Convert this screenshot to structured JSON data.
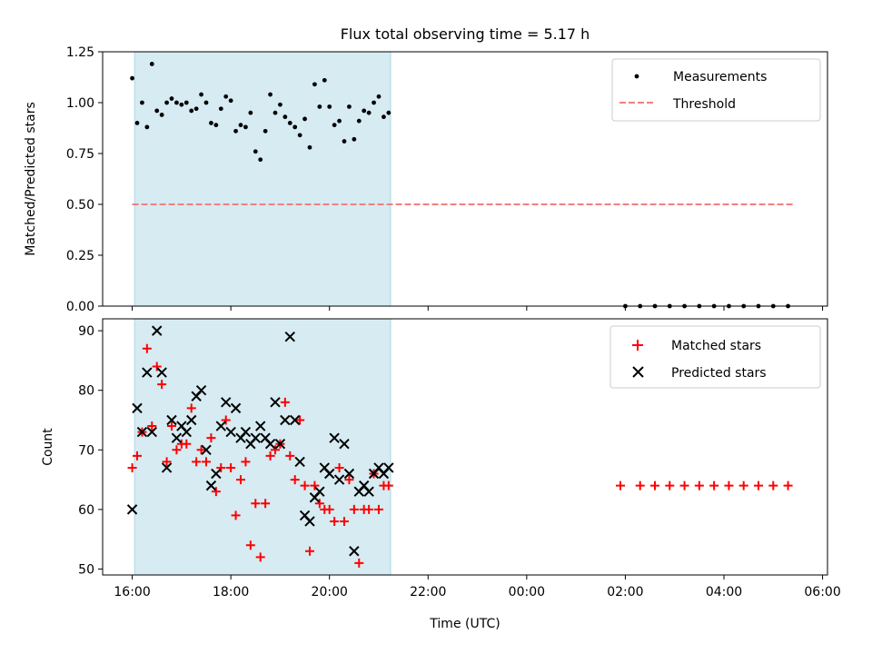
{
  "chart_data": [
    {
      "type": "scatter",
      "title": "Flux total observing time = 5.17 h",
      "xlabel": "",
      "ylabel": "Matched/Predicted stars",
      "ylim": [
        0,
        1.25
      ],
      "yticks": [
        0,
        0.25,
        0.5,
        0.75,
        1.0,
        1.25
      ],
      "ytick_labels": [
        "0.00",
        "0.25",
        "0.50",
        "0.75",
        "1.00",
        "1.25"
      ],
      "observing_window_h": [
        16.0,
        21.2
      ],
      "legend": {
        "placement": "top-right",
        "entries": [
          "Measurements",
          "Threshold"
        ]
      },
      "series": [
        {
          "name": "Measurements",
          "x": [
            16.0,
            16.1,
            16.2,
            16.3,
            16.4,
            16.5,
            16.6,
            16.7,
            16.8,
            16.9,
            17.0,
            17.1,
            17.2,
            17.3,
            17.4,
            17.5,
            17.6,
            17.7,
            17.8,
            17.9,
            18.0,
            18.1,
            18.2,
            18.3,
            18.4,
            18.5,
            18.6,
            18.7,
            18.8,
            18.9,
            19.0,
            19.1,
            19.2,
            19.3,
            19.4,
            19.5,
            19.6,
            19.7,
            19.8,
            19.9,
            20.0,
            20.1,
            20.2,
            20.3,
            20.4,
            20.5,
            20.6,
            20.7,
            20.8,
            20.9,
            21.0,
            21.1,
            21.2,
            26.0,
            26.3,
            26.6,
            26.9,
            27.2,
            27.5,
            27.8,
            28.1,
            28.4,
            28.7,
            29.0,
            29.3
          ],
          "y": [
            1.12,
            0.9,
            1.0,
            0.88,
            1.19,
            0.96,
            0.94,
            1.0,
            1.02,
            1.0,
            0.99,
            1.0,
            0.96,
            0.97,
            1.04,
            1.0,
            0.9,
            0.89,
            0.97,
            1.03,
            1.01,
            0.86,
            0.89,
            0.88,
            0.95,
            0.76,
            0.72,
            0.86,
            1.04,
            0.95,
            0.99,
            0.93,
            0.9,
            0.88,
            0.84,
            0.92,
            0.78,
            1.09,
            0.98,
            1.11,
            0.98,
            0.89,
            0.91,
            0.81,
            0.98,
            0.82,
            0.91,
            0.96,
            0.95,
            1.0,
            1.03,
            0.93,
            0.95,
            0,
            0,
            0,
            0,
            0,
            0,
            0,
            0,
            0,
            0,
            0,
            0
          ]
        },
        {
          "name": "Threshold",
          "style": "dashed",
          "color": "#f08080",
          "x": [
            16.0,
            29.4
          ],
          "y": [
            0.5,
            0.5
          ]
        }
      ]
    },
    {
      "type": "scatter",
      "title": "",
      "xlabel": "Time (UTC)",
      "ylabel": "Count",
      "ylim": [
        49,
        92
      ],
      "yticks": [
        50,
        60,
        70,
        80,
        90
      ],
      "ytick_labels": [
        "50",
        "60",
        "70",
        "80",
        "90"
      ],
      "xlim": [
        15.4,
        30.1
      ],
      "xticks": [
        16,
        18,
        20,
        22,
        24,
        26,
        28,
        30
      ],
      "xtick_labels": [
        "16:00",
        "18:00",
        "20:00",
        "22:00",
        "00:00",
        "02:00",
        "04:00",
        "06:00"
      ],
      "observing_window_h": [
        16.0,
        21.2
      ],
      "legend": {
        "placement": "top-right",
        "entries": [
          "Matched stars",
          "Predicted stars"
        ]
      },
      "series": [
        {
          "name": "Matched stars",
          "marker": "+",
          "color": "#ff0000",
          "x": [
            16.0,
            16.1,
            16.2,
            16.3,
            16.4,
            16.5,
            16.6,
            16.7,
            16.8,
            16.9,
            17.0,
            17.1,
            17.2,
            17.3,
            17.4,
            17.5,
            17.6,
            17.7,
            17.8,
            17.9,
            18.0,
            18.1,
            18.2,
            18.3,
            18.4,
            18.5,
            18.6,
            18.7,
            18.8,
            18.9,
            19.0,
            19.1,
            19.2,
            19.3,
            19.4,
            19.5,
            19.6,
            19.7,
            19.8,
            19.9,
            20.0,
            20.1,
            20.2,
            20.3,
            20.4,
            20.5,
            20.6,
            20.7,
            20.8,
            20.9,
            21.0,
            21.1,
            21.2,
            25.9,
            26.3,
            26.6,
            26.9,
            27.2,
            27.5,
            27.8,
            28.1,
            28.4,
            28.7,
            29.0,
            29.3
          ],
          "y": [
            67,
            69,
            73,
            87,
            74,
            84,
            81,
            68,
            74,
            70,
            71,
            71,
            77,
            68,
            70,
            68,
            72,
            63,
            67,
            75,
            67,
            59,
            65,
            68,
            54,
            61,
            52,
            61,
            69,
            70,
            71,
            78,
            69,
            65,
            75,
            64,
            53,
            64,
            61,
            60,
            60,
            58,
            67,
            58,
            65,
            60,
            51,
            60,
            60,
            66,
            60,
            64,
            64,
            64,
            64,
            64,
            64,
            64,
            64,
            64,
            64,
            64,
            64,
            64,
            64
          ]
        },
        {
          "name": "Predicted stars",
          "marker": "x",
          "color": "#000000",
          "x": [
            16.0,
            16.1,
            16.2,
            16.3,
            16.4,
            16.5,
            16.6,
            16.7,
            16.8,
            16.9,
            17.0,
            17.1,
            17.2,
            17.3,
            17.4,
            17.5,
            17.6,
            17.7,
            17.8,
            17.9,
            18.0,
            18.1,
            18.2,
            18.3,
            18.4,
            18.5,
            18.6,
            18.7,
            18.8,
            18.9,
            19.0,
            19.1,
            19.2,
            19.3,
            19.4,
            19.5,
            19.6,
            19.7,
            19.8,
            19.9,
            20.0,
            20.1,
            20.2,
            20.3,
            20.4,
            20.5,
            20.6,
            20.7,
            20.8,
            20.9,
            21.0,
            21.1,
            21.2
          ],
          "y": [
            60,
            77,
            73,
            83,
            73,
            90,
            83,
            67,
            75,
            72,
            74,
            73,
            75,
            79,
            80,
            70,
            64,
            66,
            74,
            78,
            73,
            77,
            72,
            73,
            71,
            72,
            74,
            72,
            71,
            78,
            71,
            75,
            89,
            75,
            68,
            59,
            58,
            62,
            63,
            67,
            66,
            72,
            65,
            71,
            66,
            53,
            63,
            64,
            63,
            66,
            67,
            66,
            67
          ]
        }
      ]
    }
  ]
}
